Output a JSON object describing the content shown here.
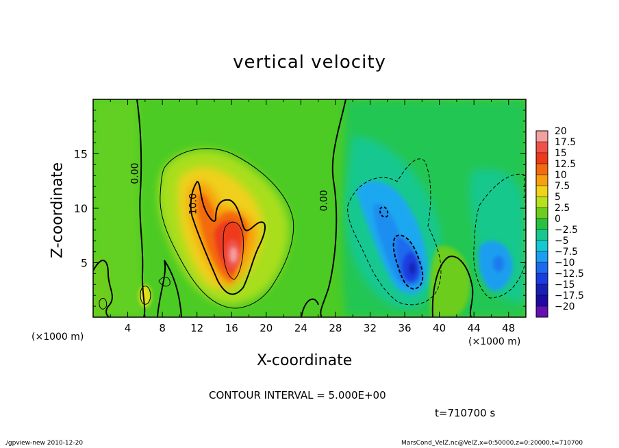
{
  "chart_data": {
    "type": "heatmap",
    "title": "vertical velocity",
    "xlabel": "X-coordinate",
    "ylabel": "Z-coordinate",
    "x_unit_label": "(×1000 m)",
    "xlim": [
      0,
      50
    ],
    "ylim": [
      0,
      20
    ],
    "x_ticks": [
      4,
      8,
      12,
      16,
      20,
      24,
      28,
      32,
      36,
      40,
      44,
      48
    ],
    "y_ticks": [
      5,
      10,
      15
    ],
    "colorbar": {
      "levels": [
        20,
        17.5,
        15,
        12.5,
        10,
        7.5,
        5,
        2.5,
        0,
        -2.5,
        -5,
        -7.5,
        -10,
        -12.5,
        -15,
        -17.5,
        -20
      ],
      "colors": [
        "#f5a0a0",
        "#f0524a",
        "#ee3a1a",
        "#f36a10",
        "#f6a010",
        "#f0d21a",
        "#b6e11c",
        "#6ccd1e",
        "#28c040",
        "#18c88c",
        "#14c8d2",
        "#1e9ef0",
        "#1e6aee",
        "#1a3ce0",
        "#1820b4",
        "#1e0aa0",
        "#6410b4"
      ]
    },
    "contour_labels": [
      {
        "text": "0.00",
        "x": 5.2,
        "z": 13.2
      },
      {
        "text": "10.0",
        "x": 11.9,
        "z": 10.4
      },
      {
        "text": "0.00",
        "x": 27.0,
        "z": 10.7
      }
    ],
    "features": [
      {
        "name": "updraft",
        "x_center": 16,
        "z_center": 6,
        "peak": 17.5
      },
      {
        "name": "downdraft",
        "x_center": 36.5,
        "z_center": 4.5,
        "peak": -12.5
      },
      {
        "name": "downdraft",
        "x_center": 46,
        "z_center": 5,
        "peak": -7.5
      }
    ]
  },
  "annotations": {
    "contour_interval": "CONTOUR INTERVAL = 5.000E+00",
    "time": "t=710700 s"
  },
  "footer": {
    "left": "./gpview-new  2010-12-20",
    "right": "MarsCond_VelZ.nc@VelZ,x=0:50000,z=0:20000,t=710700"
  }
}
